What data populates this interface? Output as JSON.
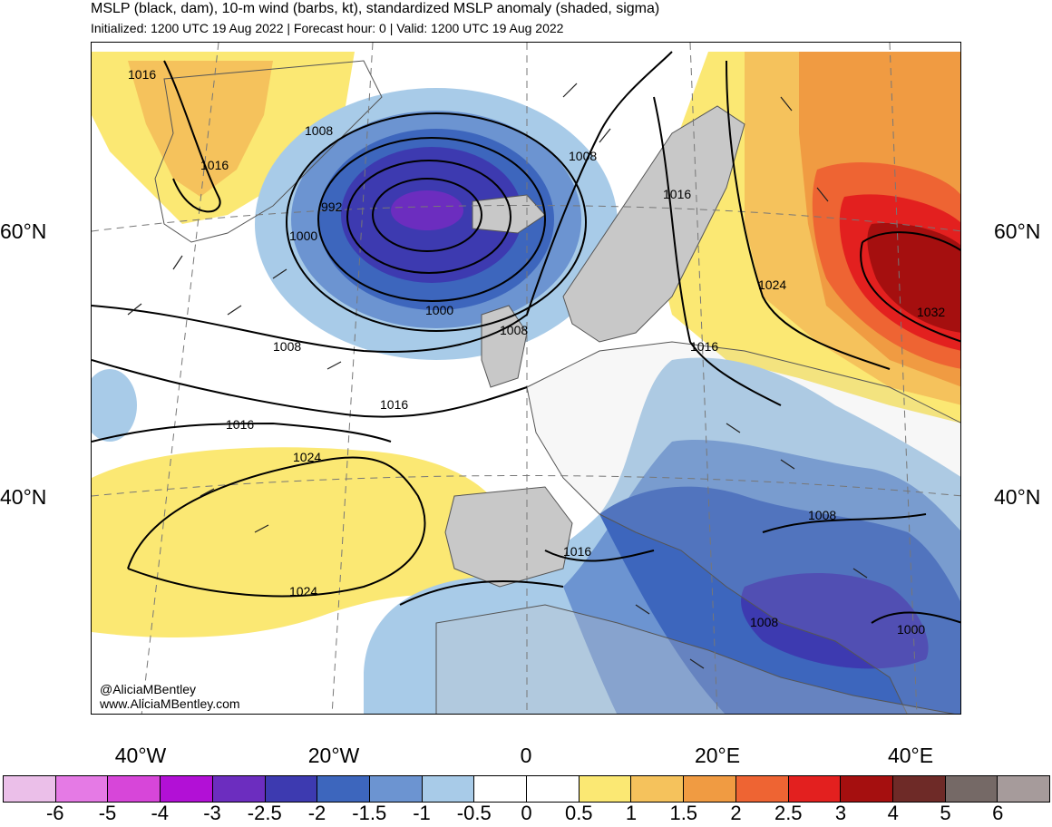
{
  "header": {
    "title": "MSLP (black, dam), 10-m wind (barbs, kt), standardized MSLP anomaly (shaded, sigma)",
    "subtitle": "Initialized: 1200 UTC 19 Aug 2022 | Forecast hour: 0 | Valid: 1200 UTC 19 Aug 2022"
  },
  "axes": {
    "lat_labels": [
      "60°N",
      "40°N"
    ],
    "lon_labels": [
      "40°W",
      "20°W",
      "0",
      "20°E",
      "40°E"
    ]
  },
  "isobar_labels": [
    "1016",
    "1016",
    "1008",
    "992",
    "1000",
    "1000",
    "1008",
    "1008",
    "1016",
    "1016",
    "1008",
    "1024",
    "1016",
    "1024",
    "1016",
    "1016",
    "1032",
    "1024",
    "1008",
    "1008",
    "1000"
  ],
  "credit": {
    "handle": "@AliciaMBentley",
    "site": "www.AliciaMBentley.com"
  },
  "colorbar": {
    "colors": [
      "#ebbfe9",
      "#e57ae5",
      "#d746d9",
      "#b210d6",
      "#6c2dbf",
      "#3d3ab0",
      "#3d66bd",
      "#6c94d1",
      "#a8cbe8",
      "#ffffff",
      "#ffffff",
      "#fbe873",
      "#f5c25c",
      "#f09b42",
      "#ee6433",
      "#e3201f",
      "#a50f0f",
      "#6e2a27",
      "#756966",
      "#a69b9b"
    ],
    "labels": [
      "-6",
      "-5",
      "-4",
      "-3",
      "-2.5",
      "-2",
      "-1.5",
      "-1",
      "-0.5",
      "0",
      "0.5",
      "1",
      "1.5",
      "2",
      "2.5",
      "3",
      "4",
      "5",
      "6"
    ]
  }
}
